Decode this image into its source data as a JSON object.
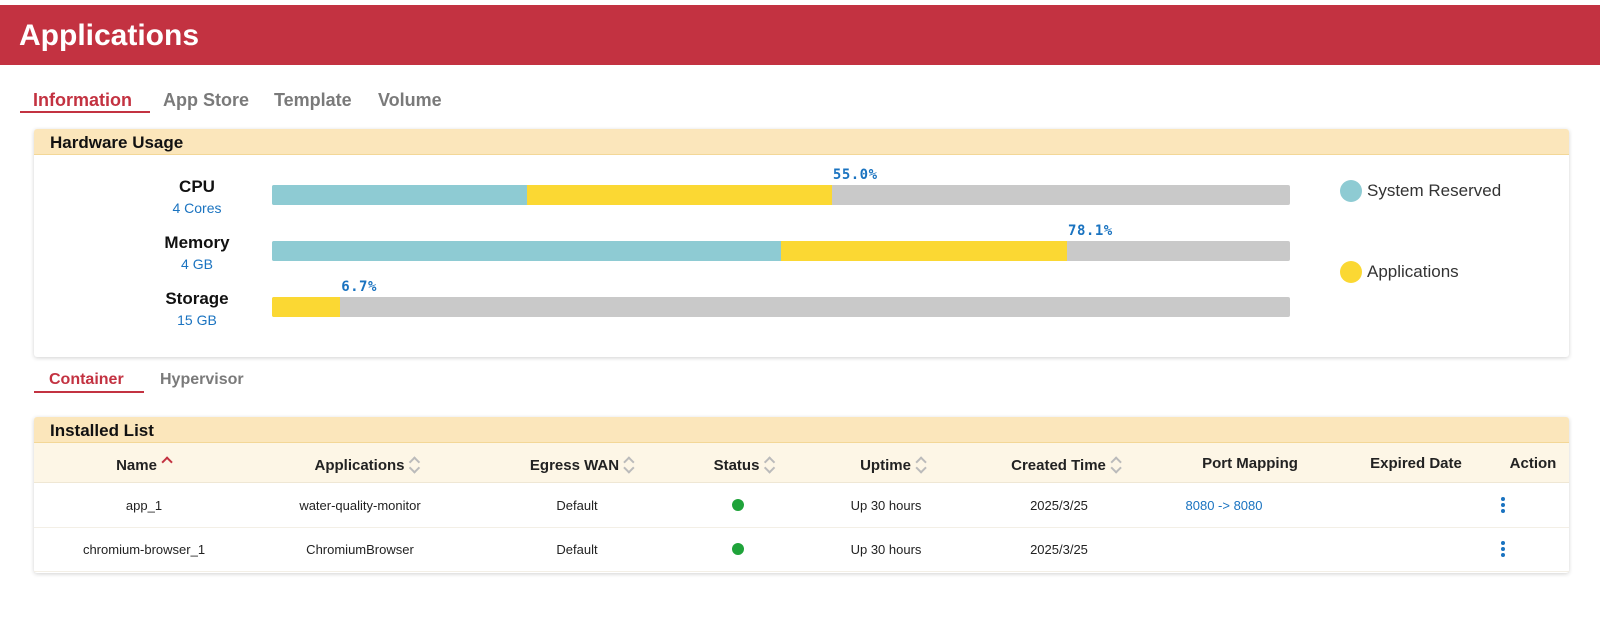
{
  "header": {
    "title": "Applications"
  },
  "main_tabs": [
    {
      "label": "Information",
      "active": true
    },
    {
      "label": "App Store",
      "active": false
    },
    {
      "label": "Template",
      "active": false
    },
    {
      "label": "Volume",
      "active": false
    }
  ],
  "hardware": {
    "title": "Hardware Usage",
    "resources": [
      {
        "name": "CPU",
        "sub": "4 Cores",
        "system_reserved": 0.25,
        "applications": 0.3,
        "percent_label": "55.0%"
      },
      {
        "name": "Memory",
        "sub": "4 GB",
        "system_reserved": 0.5,
        "applications": 0.281,
        "percent_label": "78.1%"
      },
      {
        "name": "Storage",
        "sub": "15 GB",
        "system_reserved": 0.0,
        "applications": 0.067,
        "percent_label": "6.7%"
      }
    ],
    "legend": [
      {
        "label": "System Reserved",
        "color": "#8ecbd3"
      },
      {
        "label": "Applications",
        "color": "#fbd833"
      }
    ]
  },
  "sub_tabs": [
    {
      "label": "Container",
      "active": true
    },
    {
      "label": "Hypervisor",
      "active": false
    }
  ],
  "installed": {
    "title": "Installed List",
    "columns": [
      {
        "label": "Name",
        "sortable": true,
        "sort": "asc"
      },
      {
        "label": "Applications",
        "sortable": true
      },
      {
        "label": "Egress WAN",
        "sortable": true
      },
      {
        "label": "Status",
        "sortable": true
      },
      {
        "label": "Uptime",
        "sortable": true
      },
      {
        "label": "Created Time",
        "sortable": true
      },
      {
        "label": "Port Mapping",
        "sortable": false
      },
      {
        "label": "Expired Date",
        "sortable": false
      },
      {
        "label": "Action",
        "sortable": false
      }
    ],
    "rows": [
      {
        "name": "app_1",
        "application": "water-quality-monitor",
        "egress_wan": "Default",
        "status": "running",
        "uptime": "Up 30 hours",
        "created": "2025/3/25",
        "port_mapping": "8080 -> 8080",
        "expired": ""
      },
      {
        "name": "chromium-browser_1",
        "application": "ChromiumBrowser",
        "egress_wan": "Default",
        "status": "running",
        "uptime": "Up 30 hours",
        "created": "2025/3/25",
        "port_mapping": "",
        "expired": ""
      }
    ]
  },
  "colors": {
    "accent": "#c33241",
    "link": "#1a73c0",
    "status_running": "#1fa33a",
    "card_header": "#fbe6bb"
  }
}
